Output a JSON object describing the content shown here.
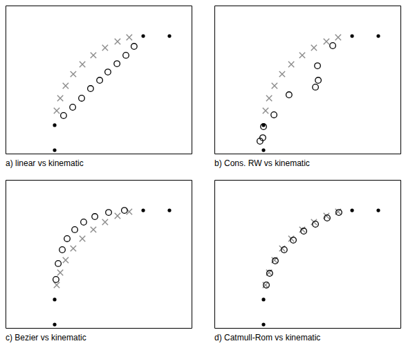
{
  "chart_data": [
    {
      "type": "scatter",
      "title": "a) linear vs kinematic",
      "xlim": [
        0,
        100
      ],
      "ylim": [
        0,
        100
      ],
      "tick_labels": false,
      "series": [
        {
          "marker": "dot",
          "color": "#000000",
          "x": [
            26.4,
            26.4,
            74.0,
            88.1
          ],
          "values": [
            2.3,
            19.2,
            79.4,
            79.4
          ]
        },
        {
          "marker": "x",
          "color": "#8c8c8c",
          "x": [
            27.5,
            29.4,
            32.3,
            36.4,
            41.3,
            47.2,
            53.5,
            60.2,
            66.5
          ],
          "values": [
            29.0,
            37.4,
            45.8,
            53.7,
            60.3,
            66.4,
            71.5,
            75.7,
            78.5
          ]
        },
        {
          "marker": "circle",
          "color": "#000000",
          "x": [
            31.2,
            36.1,
            40.9,
            45.7,
            50.6,
            55.0,
            59.9,
            64.7,
            69.1
          ],
          "values": [
            25.7,
            31.3,
            37.4,
            43.9,
            49.5,
            55.1,
            60.7,
            66.4,
            72.4
          ]
        }
      ]
    },
    {
      "type": "scatter",
      "title": "b) Cons. RW vs kinematic",
      "xlim": [
        0,
        100
      ],
      "ylim": [
        0,
        100
      ],
      "tick_labels": false,
      "series": [
        {
          "marker": "dot",
          "color": "#000000",
          "x": [
            26.4,
            26.4,
            74.0,
            88.1
          ],
          "values": [
            2.3,
            19.2,
            79.4,
            79.4
          ]
        },
        {
          "marker": "x",
          "color": "#8c8c8c",
          "x": [
            27.5,
            29.4,
            32.3,
            36.4,
            41.3,
            47.2,
            53.5,
            60.2,
            66.5
          ],
          "values": [
            29.0,
            37.4,
            45.8,
            53.7,
            60.3,
            66.4,
            71.5,
            75.7,
            78.5
          ]
        },
        {
          "marker": "circle",
          "color": "#000000",
          "x": [
            24.5,
            26.0,
            26.4,
            32.0,
            40.1,
            54.3,
            55.8,
            55.4,
            63.6
          ],
          "values": [
            8.4,
            10.7,
            18.2,
            26.2,
            39.7,
            44.9,
            49.5,
            59.3,
            72.9
          ]
        }
      ]
    },
    {
      "type": "scatter",
      "title": "c) Bezier vs kinematic",
      "xlim": [
        0,
        100
      ],
      "ylim": [
        0,
        100
      ],
      "tick_labels": false,
      "series": [
        {
          "marker": "dot",
          "color": "#000000",
          "x": [
            26.4,
            26.4,
            74.0,
            88.1
          ],
          "values": [
            2.3,
            19.2,
            79.4,
            79.4
          ]
        },
        {
          "marker": "x",
          "color": "#8c8c8c",
          "x": [
            27.5,
            29.4,
            32.3,
            36.4,
            41.3,
            47.2,
            53.5,
            60.2,
            66.5
          ],
          "values": [
            29.0,
            37.4,
            45.8,
            53.7,
            60.3,
            66.4,
            71.5,
            75.7,
            78.5
          ]
        },
        {
          "marker": "circle",
          "color": "#000000",
          "x": [
            27.1,
            28.3,
            30.5,
            33.1,
            37.2,
            42.0,
            48.0,
            55.4,
            63.9
          ],
          "values": [
            32.7,
            43.5,
            52.8,
            60.3,
            66.4,
            71.5,
            75.2,
            78.0,
            79.4
          ]
        }
      ]
    },
    {
      "type": "scatter",
      "title": "d) Catmull-Rom vs kinematic",
      "xlim": [
        0,
        100
      ],
      "ylim": [
        0,
        100
      ],
      "tick_labels": false,
      "series": [
        {
          "marker": "dot",
          "color": "#000000",
          "x": [
            26.4,
            26.4,
            74.0,
            88.1
          ],
          "values": [
            2.3,
            19.2,
            79.4,
            79.4
          ]
        },
        {
          "marker": "x",
          "color": "#8c8c8c",
          "x": [
            27.5,
            29.4,
            32.3,
            36.4,
            41.3,
            47.2,
            53.5,
            60.2,
            66.5
          ],
          "values": [
            29.0,
            37.4,
            45.8,
            53.7,
            60.3,
            66.4,
            71.5,
            75.7,
            78.5
          ]
        },
        {
          "marker": "circle",
          "color": "#000000",
          "x": [
            27.9,
            29.7,
            32.7,
            37.5,
            42.4,
            48.0,
            54.3,
            60.6,
            66.9
          ],
          "values": [
            29.0,
            36.9,
            45.3,
            52.8,
            59.3,
            65.4,
            70.1,
            74.3,
            78.0
          ]
        }
      ]
    }
  ]
}
